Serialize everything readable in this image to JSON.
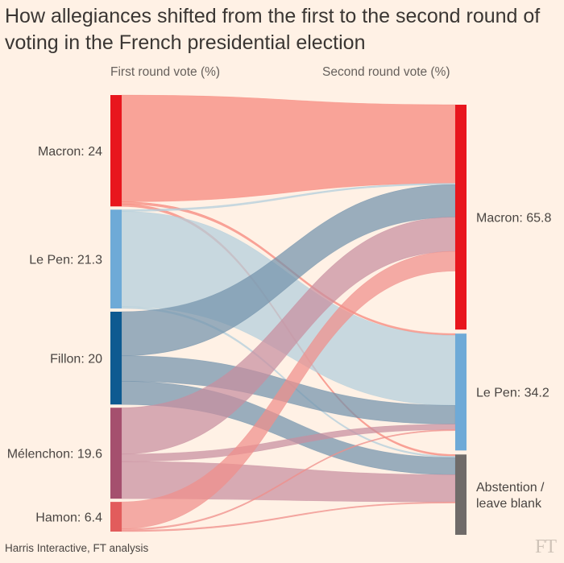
{
  "chart_data": {
    "type": "sankey",
    "title": "How allegiances shifted from the first to the second round of voting in the French presidential election",
    "left_axis_label": "First round vote (%)",
    "right_axis_label": "Second round vote (%)",
    "source": "Harris Interactive, FT analysis",
    "logo": "FT",
    "sources": [
      {
        "name": "Macron",
        "label": "Macron: 24",
        "value": 24,
        "color": "#e8161d",
        "flow_color": "#f7857a"
      },
      {
        "name": "Le Pen",
        "label": "Le Pen: 21.3",
        "value": 21.3,
        "color": "#6eaad7",
        "flow_color": "#b3cfdc"
      },
      {
        "name": "Fillon",
        "label": "Fillon: 20",
        "value": 20,
        "color": "#0e5a91",
        "flow_color": "#7393ac"
      },
      {
        "name": "Mélenchon",
        "label": "Mélenchon: 19.6",
        "value": 19.6,
        "color": "#a5506e",
        "flow_color": "#c88fa0"
      },
      {
        "name": "Hamon",
        "label": "Hamon: 6.4",
        "value": 6.4,
        "color": "#e25c5c",
        "flow_color": "#f08f8a"
      }
    ],
    "targets": [
      {
        "name": "Macron",
        "label": "Macron: 65.8",
        "value": 65.8,
        "color": "#e8161d"
      },
      {
        "name": "Le Pen",
        "label": "Le Pen: 34.2",
        "value": 34.2,
        "color": "#6eaad7"
      },
      {
        "name": "Abstention",
        "label_lines": [
          "Abstention /",
          "leave blank"
        ],
        "value": 23.5,
        "color": "#6f6b69"
      }
    ],
    "flows": [
      {
        "from": 0,
        "to": 0,
        "value": 23.0
      },
      {
        "from": 0,
        "to": 1,
        "value": 0.5
      },
      {
        "from": 0,
        "to": 2,
        "value": 0.5
      },
      {
        "from": 1,
        "to": 0,
        "value": 0.4
      },
      {
        "from": 1,
        "to": 1,
        "value": 20.5
      },
      {
        "from": 1,
        "to": 2,
        "value": 0.4
      },
      {
        "from": 2,
        "to": 0,
        "value": 9.5
      },
      {
        "from": 2,
        "to": 1,
        "value": 5.5
      },
      {
        "from": 2,
        "to": 2,
        "value": 5.0
      },
      {
        "from": 3,
        "to": 0,
        "value": 10.0
      },
      {
        "from": 3,
        "to": 1,
        "value": 1.6
      },
      {
        "from": 3,
        "to": 2,
        "value": 8.0
      },
      {
        "from": 4,
        "to": 0,
        "value": 5.8
      },
      {
        "from": 4,
        "to": 1,
        "value": 0.3
      },
      {
        "from": 4,
        "to": 2,
        "value": 0.3
      }
    ]
  }
}
